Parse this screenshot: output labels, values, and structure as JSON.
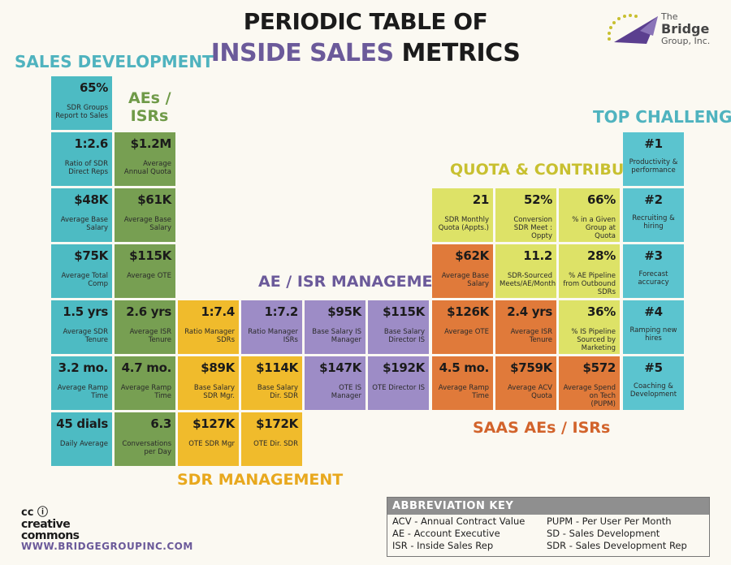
{
  "header": {
    "title_line1": "PERIODIC TABLE OF",
    "title_line2_a": "INSIDE SALES",
    "title_line2_b": " METRICS",
    "logo_line1": "The",
    "logo_line2": "Bridge",
    "logo_line3": "Group, Inc."
  },
  "sections": {
    "sales_development": "SALES DEVELOPMENT",
    "aes_isrs_1": "AEs /",
    "aes_isrs_2": "ISRs",
    "top_challenges": "TOP CHALLENGES",
    "quota_contribution": "QUOTA & CONTRIBUTION",
    "ae_isr_management": "AE / ISR MANAGEMENT",
    "saas": "SAAS AEs / ISRs",
    "sdr_management": "SDR MANAGEMENT"
  },
  "colors": {
    "teal": "#4dbbc3",
    "green": "#779f52",
    "yellow": "#f0bb2c",
    "purple": "#9d8cc6",
    "lime": "#dde267",
    "orange": "#e07a3a",
    "brand_purple": "#6b5a9a"
  },
  "tiles": {
    "sd1": {
      "value": "65%",
      "label": "SDR Groups Report to Sales"
    },
    "sd2": {
      "value": "1:2.6",
      "label": "Ratio of SDR Direct Reps"
    },
    "sd3": {
      "value": "$48K",
      "label": "Average Base Salary"
    },
    "sd4": {
      "value": "$75K",
      "label": "Average Total Comp"
    },
    "sd5": {
      "value": "1.5 yrs",
      "label": "Average SDR Tenure"
    },
    "sd6": {
      "value": "3.2 mo.",
      "label": "Average Ramp Time"
    },
    "sd7": {
      "value": "45 dials",
      "label": "Daily Average"
    },
    "ae1": {
      "value": "$1.2M",
      "label": "Average Annual Quota"
    },
    "ae2": {
      "value": "$61K",
      "label": "Average Base Salary"
    },
    "ae3": {
      "value": "$115K",
      "label": "Average OTE"
    },
    "ae4": {
      "value": "2.6 yrs",
      "label": "Average ISR Tenure"
    },
    "ae5": {
      "value": "4.7 mo.",
      "label": "Average Ramp Time"
    },
    "ae6": {
      "value": "6.3",
      "label": "Conversations per Day"
    },
    "sm1": {
      "value": "1:7.4",
      "label": "Ratio Manager SDRs"
    },
    "sm2": {
      "value": "$89K",
      "label": "Base Salary SDR Mgr."
    },
    "sm3": {
      "value": "$114K",
      "label": "Base Salary Dir. SDR"
    },
    "sm4": {
      "value": "$127K",
      "label": "OTE SDR Mgr"
    },
    "sm5": {
      "value": "$172K",
      "label": "OTE Dir. SDR"
    },
    "am1": {
      "value": "1:7.2",
      "label": "Ratio Manager ISRs"
    },
    "am2": {
      "value": "$95K",
      "label": "Base Salary IS Manager"
    },
    "am3": {
      "value": "$115K",
      "label": "Base Salary Director IS"
    },
    "am4": {
      "value": "$147K",
      "label": "OTE IS Manager"
    },
    "am5": {
      "value": "$192K",
      "label": "OTE Director IS"
    },
    "qc1": {
      "value": "21",
      "label": "SDR Monthly Quota (Appts.)"
    },
    "qc2": {
      "value": "52%",
      "label": "Conversion SDR Meet : Oppty"
    },
    "qc3": {
      "value": "66%",
      "label": "% in a Given Group at Quota"
    },
    "qc4": {
      "value": "11.2",
      "label": "SDR-Sourced Meets/AE/Month"
    },
    "qc5": {
      "value": "28%",
      "label": "% AE Pipeline from Outbound SDRs"
    },
    "qc6": {
      "value": "36%",
      "label": "% IS Pipeline Sourced by Marketing"
    },
    "sa1": {
      "value": "$62K",
      "label": "Average Base Salary"
    },
    "sa2": {
      "value": "$126K",
      "label": "Average OTE"
    },
    "sa3": {
      "value": "2.4 yrs",
      "label": "Average ISR Tenure"
    },
    "sa4": {
      "value": "4.5 mo.",
      "label": "Average Ramp Time"
    },
    "sa5": {
      "value": "$759K",
      "label": "Average ACV Quota"
    },
    "sa6": {
      "value": "$572",
      "label": "Average Spend on Tech (PUPM)"
    },
    "tc1": {
      "value": "#1",
      "label": "Productivity & performance"
    },
    "tc2": {
      "value": "#2",
      "label": "Recruiting & hiring"
    },
    "tc3": {
      "value": "#3",
      "label": "Forecast accuracy"
    },
    "tc4": {
      "value": "#4",
      "label": "Ramping new hires"
    },
    "tc5": {
      "value": "#5",
      "label": "Coaching & Development"
    }
  },
  "key": {
    "heading": "ABBREVIATION KEY",
    "rows": [
      "ACV  - Annual Contract Value",
      "AE    - Account Executive",
      "ISR   - Inside Sales Rep",
      "PUPM - Per User Per Month",
      "SD     - Sales Development",
      "SDR   - Sales Development Rep"
    ]
  },
  "footer": {
    "cc_icons": "cc ⓘ",
    "cc_line1": "creative",
    "cc_line2": "commons",
    "url": "WWW.BRIDGEGROUPINC.COM"
  }
}
